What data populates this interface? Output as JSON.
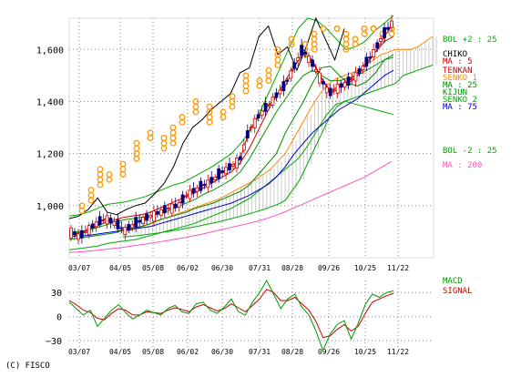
{
  "copyright": "(C) FISCO",
  "colors": {
    "price": "#000000",
    "candle_up": "#cc0000",
    "candle_down": "#000080",
    "ichimoku_cloud": "#cccccc",
    "chikou": "#000000",
    "tenkan": "#cc0000",
    "kijun": "#009900",
    "senko_a": "#ff8800",
    "senko_b": "#00aa00",
    "ma5": "#cc0000",
    "ma25": "#008800",
    "ma75": "#0000cc",
    "ma200": "#ff55bb",
    "bollinger": "#00aa00",
    "pnf": "#ff9900",
    "macd": "#009900",
    "signal": "#cc0000",
    "grid": "#888888"
  },
  "chart_data": [
    {
      "type": "line",
      "x_tick_labels": [
        "03/07",
        "04/05",
        "05/08",
        "06/02",
        "06/30",
        "07/31",
        "08/28",
        "09/26",
        "10/25",
        "11/22"
      ],
      "y_tick_labels": [
        "1,000",
        "1,200",
        "1,400",
        "1,600"
      ],
      "ylim": [
        800,
        1720
      ],
      "legend": [
        {
          "label": "BOL +2 : 25",
          "color": "#00aa00"
        },
        {
          "label": "CHIKO",
          "color": "#000000"
        },
        {
          "label": "MA : 5",
          "color": "#cc0000"
        },
        {
          "label": "TENKAN",
          "color": "#cc0000"
        },
        {
          "label": "SENKO 1",
          "color": "#ff8800"
        },
        {
          "label": "MA : 25",
          "color": "#008800"
        },
        {
          "label": "KIJUN",
          "color": "#009900"
        },
        {
          "label": "SENKO 2",
          "color": "#00aa00"
        },
        {
          "label": "MA : 75",
          "color": "#0000cc"
        },
        {
          "label": "BOL -2 : 25",
          "color": "#00aa00"
        },
        {
          "label": "MA : 200",
          "color": "#ff55bb"
        }
      ],
      "series": [
        {
          "name": "CHIKO",
          "key": "chikou",
          "values": [
            950,
            960,
            985,
            1030,
            975,
            965,
            985,
            1000,
            1010,
            1045,
            1085,
            1150,
            1240,
            1300,
            1330,
            1370,
            1400,
            1430,
            1510,
            1530,
            1650,
            1690,
            1580,
            1610,
            1520,
            1610,
            1720,
            1640,
            1560,
            1680
          ]
        },
        {
          "name": "MA : 5",
          "key": "ma5",
          "values": [
            900,
            880,
            910,
            935,
            950,
            930,
            905,
            925,
            945,
            960,
            975,
            990,
            1000,
            1040,
            1060,
            1080,
            1100,
            1130,
            1150,
            1180,
            1290,
            1340,
            1380,
            1420,
            1460,
            1530,
            1600,
            1550,
            1490,
            1430,
            1455,
            1470,
            1500,
            1540,
            1590,
            1650,
            1700
          ]
        },
        {
          "name": "MA : 25",
          "key": "ma25",
          "values": [
            870,
            875,
            880,
            885,
            890,
            895,
            905,
            915,
            920,
            930,
            945,
            955,
            965,
            975,
            990,
            1000,
            1010,
            1025,
            1040,
            1055,
            1080,
            1120,
            1160,
            1200,
            1280,
            1340,
            1400,
            1470,
            1530,
            1535,
            1500,
            1470,
            1460,
            1475,
            1510,
            1560,
            1580
          ]
        },
        {
          "name": "MA : 75",
          "key": "ma75",
          "values": [
            880,
            885,
            885,
            890,
            895,
            900,
            905,
            910,
            915,
            920,
            930,
            940,
            950,
            960,
            970,
            980,
            990,
            1000,
            1010,
            1025,
            1040,
            1060,
            1080,
            1110,
            1150,
            1200,
            1240,
            1280,
            1310,
            1340,
            1370,
            1390,
            1410,
            1440,
            1470,
            1500,
            1520
          ]
        },
        {
          "name": "MA : 200",
          "key": "ma200",
          "values": [
            820,
            822,
            825,
            828,
            832,
            836,
            840,
            845,
            850,
            855,
            860,
            866,
            872,
            878,
            885,
            892,
            900,
            908,
            916,
            924,
            932,
            940,
            950,
            962,
            975,
            990,
            1005,
            1020,
            1035,
            1050,
            1065,
            1080,
            1095,
            1110,
            1130,
            1150,
            1170
          ]
        },
        {
          "name": "TENKAN",
          "key": "tenkan",
          "values": [
            890,
            895,
            905,
            920,
            935,
            945,
            955,
            960,
            965,
            975,
            990,
            1005,
            1020,
            1035,
            1050,
            1070,
            1090,
            1110,
            1130,
            1165,
            1220,
            1290,
            1360,
            1420,
            1480,
            1540,
            1580,
            1560,
            1490,
            1440,
            1460,
            1480,
            1510,
            1550,
            1590,
            1630,
            1650
          ]
        },
        {
          "name": "KIJUN",
          "key": "kijun",
          "values": [
            900,
            900,
            905,
            915,
            925,
            935,
            945,
            950,
            955,
            960,
            970,
            980,
            995,
            1010,
            1025,
            1045,
            1060,
            1080,
            1100,
            1130,
            1180,
            1240,
            1300,
            1360,
            1410,
            1460,
            1500,
            1520,
            1500,
            1480,
            1480,
            1490,
            1500,
            1520,
            1540,
            1560,
            1570
          ]
        }
      ],
      "cloud": {
        "senko_1": [
          900,
          905,
          915,
          925,
          935,
          945,
          955,
          965,
          975,
          985,
          995,
          1005,
          1015,
          1025,
          1040,
          1055,
          1070,
          1085,
          1100,
          1120,
          1140,
          1170,
          1200,
          1250,
          1300,
          1350,
          1400,
          1440,
          1470,
          1490,
          1500,
          1510,
          1520,
          1540,
          1560,
          1580,
          1590,
          1600,
          1600,
          1600,
          1610,
          1630,
          1650
        ],
        "senko_2": [
          880,
          882,
          885,
          888,
          892,
          896,
          900,
          905,
          910,
          915,
          920,
          926,
          932,
          938,
          945,
          952,
          960,
          968,
          976,
          985,
          995,
          1005,
          1020,
          1060,
          1100,
          1160,
          1220,
          1280,
          1340,
          1380,
          1400,
          1410,
          1420,
          1430,
          1440,
          1450,
          1460,
          1470,
          1500,
          1510,
          1520,
          1530,
          1540
        ]
      },
      "bollinger": {
        "upper": [
          960,
          965,
          975,
          990,
          1005,
          1010,
          1015,
          1025,
          1035,
          1050,
          1065,
          1080,
          1090,
          1110,
          1130,
          1150,
          1175,
          1200,
          1240,
          1290,
          1360,
          1440,
          1520,
          1600,
          1680,
          1720,
          1710,
          1680,
          1640,
          1600,
          1610,
          1630,
          1670,
          1700,
          1730
        ],
        "lower": [
          830,
          835,
          840,
          845,
          855,
          860,
          865,
          870,
          880,
          890,
          900,
          910,
          920,
          930,
          945,
          960,
          975,
          990,
          1010,
          1030,
          1060,
          1090,
          1120,
          1150,
          1180,
          1230,
          1290,
          1350,
          1390,
          1400,
          1390,
          1380,
          1370,
          1360,
          1350
        ]
      },
      "pnf_levels": [
        960,
        980,
        1000,
        1020,
        1040,
        1060,
        1080,
        1100,
        1120,
        1140,
        1160,
        1180,
        1200,
        1220,
        1240,
        1260,
        1280,
        1300,
        1320,
        1340,
        1360,
        1380,
        1400,
        1420,
        1440,
        1460,
        1480,
        1500,
        1520,
        1540,
        1560,
        1580,
        1600,
        1620,
        1640,
        1660,
        1680
      ]
    },
    {
      "type": "line",
      "x_tick_labels": [
        "03/07",
        "04/05",
        "05/08",
        "06/02",
        "06/30",
        "07/31",
        "08/28",
        "09/26",
        "10/25",
        "11/22"
      ],
      "y_tick_labels": [
        "30",
        "0",
        "−30"
      ],
      "ylim": [
        -40,
        45
      ],
      "legend": [
        {
          "label": "MACD",
          "color": "#009900"
        },
        {
          "label": "SIGNAL",
          "color": "#cc0000"
        }
      ],
      "series": [
        {
          "name": "MACD",
          "key": "macd",
          "values": [
            18,
            10,
            2,
            8,
            -12,
            -2,
            8,
            15,
            5,
            -3,
            2,
            8,
            5,
            2,
            10,
            14,
            6,
            4,
            16,
            18,
            8,
            4,
            12,
            22,
            6,
            2,
            18,
            30,
            45,
            28,
            10,
            22,
            28,
            12,
            2,
            -18,
            -42,
            -22,
            -10,
            -5,
            -28,
            -8,
            15,
            28,
            24,
            30,
            32
          ]
        },
        {
          "name": "SIGNAL",
          "key": "signal",
          "values": [
            20,
            15,
            8,
            5,
            -2,
            -4,
            4,
            10,
            8,
            2,
            2,
            6,
            5,
            4,
            8,
            11,
            9,
            6,
            12,
            15,
            11,
            7,
            10,
            16,
            11,
            6,
            14,
            22,
            34,
            30,
            20,
            20,
            24,
            16,
            8,
            -6,
            -26,
            -24,
            -16,
            -10,
            -18,
            -12,
            4,
            18,
            22,
            26,
            29
          ]
        }
      ]
    }
  ]
}
